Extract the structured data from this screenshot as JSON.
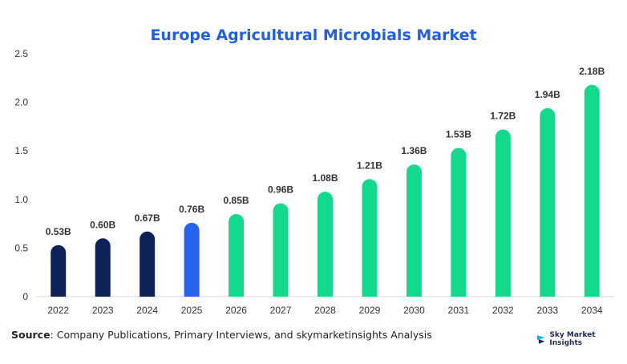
{
  "chart_data": {
    "type": "bar",
    "title": "Europe Agricultural Microbials Market",
    "categories": [
      "2022",
      "2023",
      "2024",
      "2025",
      "2026",
      "2027",
      "2028",
      "2029",
      "2030",
      "2031",
      "2032",
      "2033",
      "2034"
    ],
    "values": [
      0.53,
      0.6,
      0.67,
      0.76,
      0.85,
      0.96,
      1.08,
      1.21,
      1.36,
      1.53,
      1.72,
      1.94,
      2.18
    ],
    "data_labels": [
      "0.53B",
      "0.60B",
      "0.67B",
      "0.76B",
      "0.85B",
      "0.96B",
      "1.08B",
      "1.21B",
      "1.36B",
      "1.53B",
      "1.72B",
      "1.94B",
      "2.18B"
    ],
    "ylim": [
      0,
      2.5
    ],
    "yticks": [
      "0",
      "0.5",
      "1.0",
      "1.5",
      "2.0",
      "2.5"
    ],
    "ytick_values": [
      0,
      0.5,
      1.0,
      1.5,
      2.0,
      2.5
    ],
    "xlabel": "",
    "ylabel": "",
    "grid": false,
    "colors": {
      "historical": "#0d2257",
      "current": "#2563eb",
      "forecast": "#12d98c",
      "title": "#1f5fe0"
    },
    "bar_color_groups": [
      "historical",
      "historical",
      "historical",
      "current",
      "forecast",
      "forecast",
      "forecast",
      "forecast",
      "forecast",
      "forecast",
      "forecast",
      "forecast",
      "forecast"
    ]
  },
  "footer": {
    "source_label": "Source",
    "source_text": ": Company Publications, Primary Interviews, and skymarketinsights Analysis",
    "brand_name": "Sky Market Insights",
    "brand_icon": "sky-market-insights-logo-icon"
  }
}
